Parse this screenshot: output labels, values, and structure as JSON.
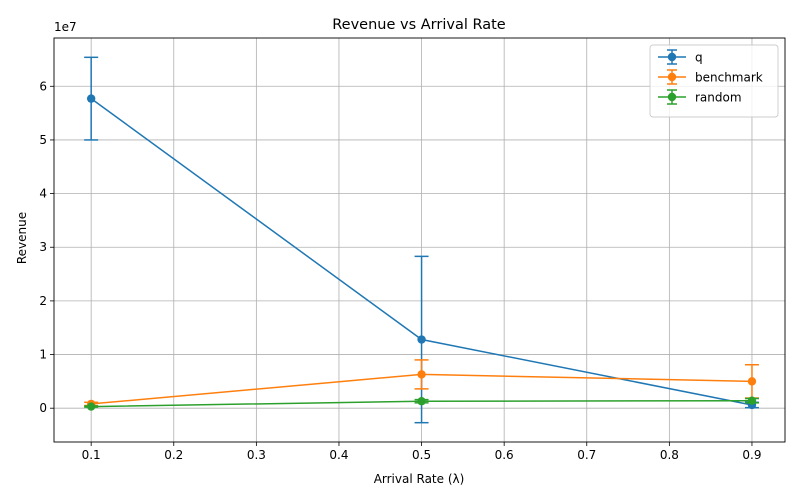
{
  "chart_data": {
    "type": "line",
    "title": "Revenue vs Arrival Rate",
    "xlabel": "Arrival Rate (λ)",
    "ylabel": "Revenue",
    "y_offset_label": "1e7",
    "y_scale_factor": 10000000,
    "x": [
      0.1,
      0.5,
      0.9
    ],
    "xlim": [
      0.055,
      0.94
    ],
    "ylim": [
      -0.63,
      6.9
    ],
    "x_ticks": [
      0.1,
      0.2,
      0.3,
      0.4,
      0.5,
      0.6,
      0.7,
      0.8,
      0.9
    ],
    "x_tick_labels": [
      "0.1",
      "0.2",
      "0.3",
      "0.4",
      "0.5",
      "0.6",
      "0.7",
      "0.8",
      "0.9"
    ],
    "y_ticks": [
      0,
      1,
      2,
      3,
      4,
      5,
      6
    ],
    "y_tick_labels": [
      "0",
      "1",
      "2",
      "3",
      "4",
      "5",
      "6"
    ],
    "grid": true,
    "legend_position": "top-right",
    "series": [
      {
        "name": "q",
        "color": "#1f77b4",
        "values": [
          5.77,
          1.28,
          0.06
        ],
        "errors": [
          0.77,
          1.55,
          0.05
        ]
      },
      {
        "name": "benchmark",
        "color": "#ff7f0e",
        "values": [
          0.08,
          0.63,
          0.5
        ],
        "errors": [
          0.03,
          0.27,
          0.31
        ]
      },
      {
        "name": "random",
        "color": "#2ca02c",
        "values": [
          0.03,
          0.13,
          0.14
        ],
        "errors": [
          0.01,
          0.03,
          0.04
        ]
      }
    ]
  }
}
